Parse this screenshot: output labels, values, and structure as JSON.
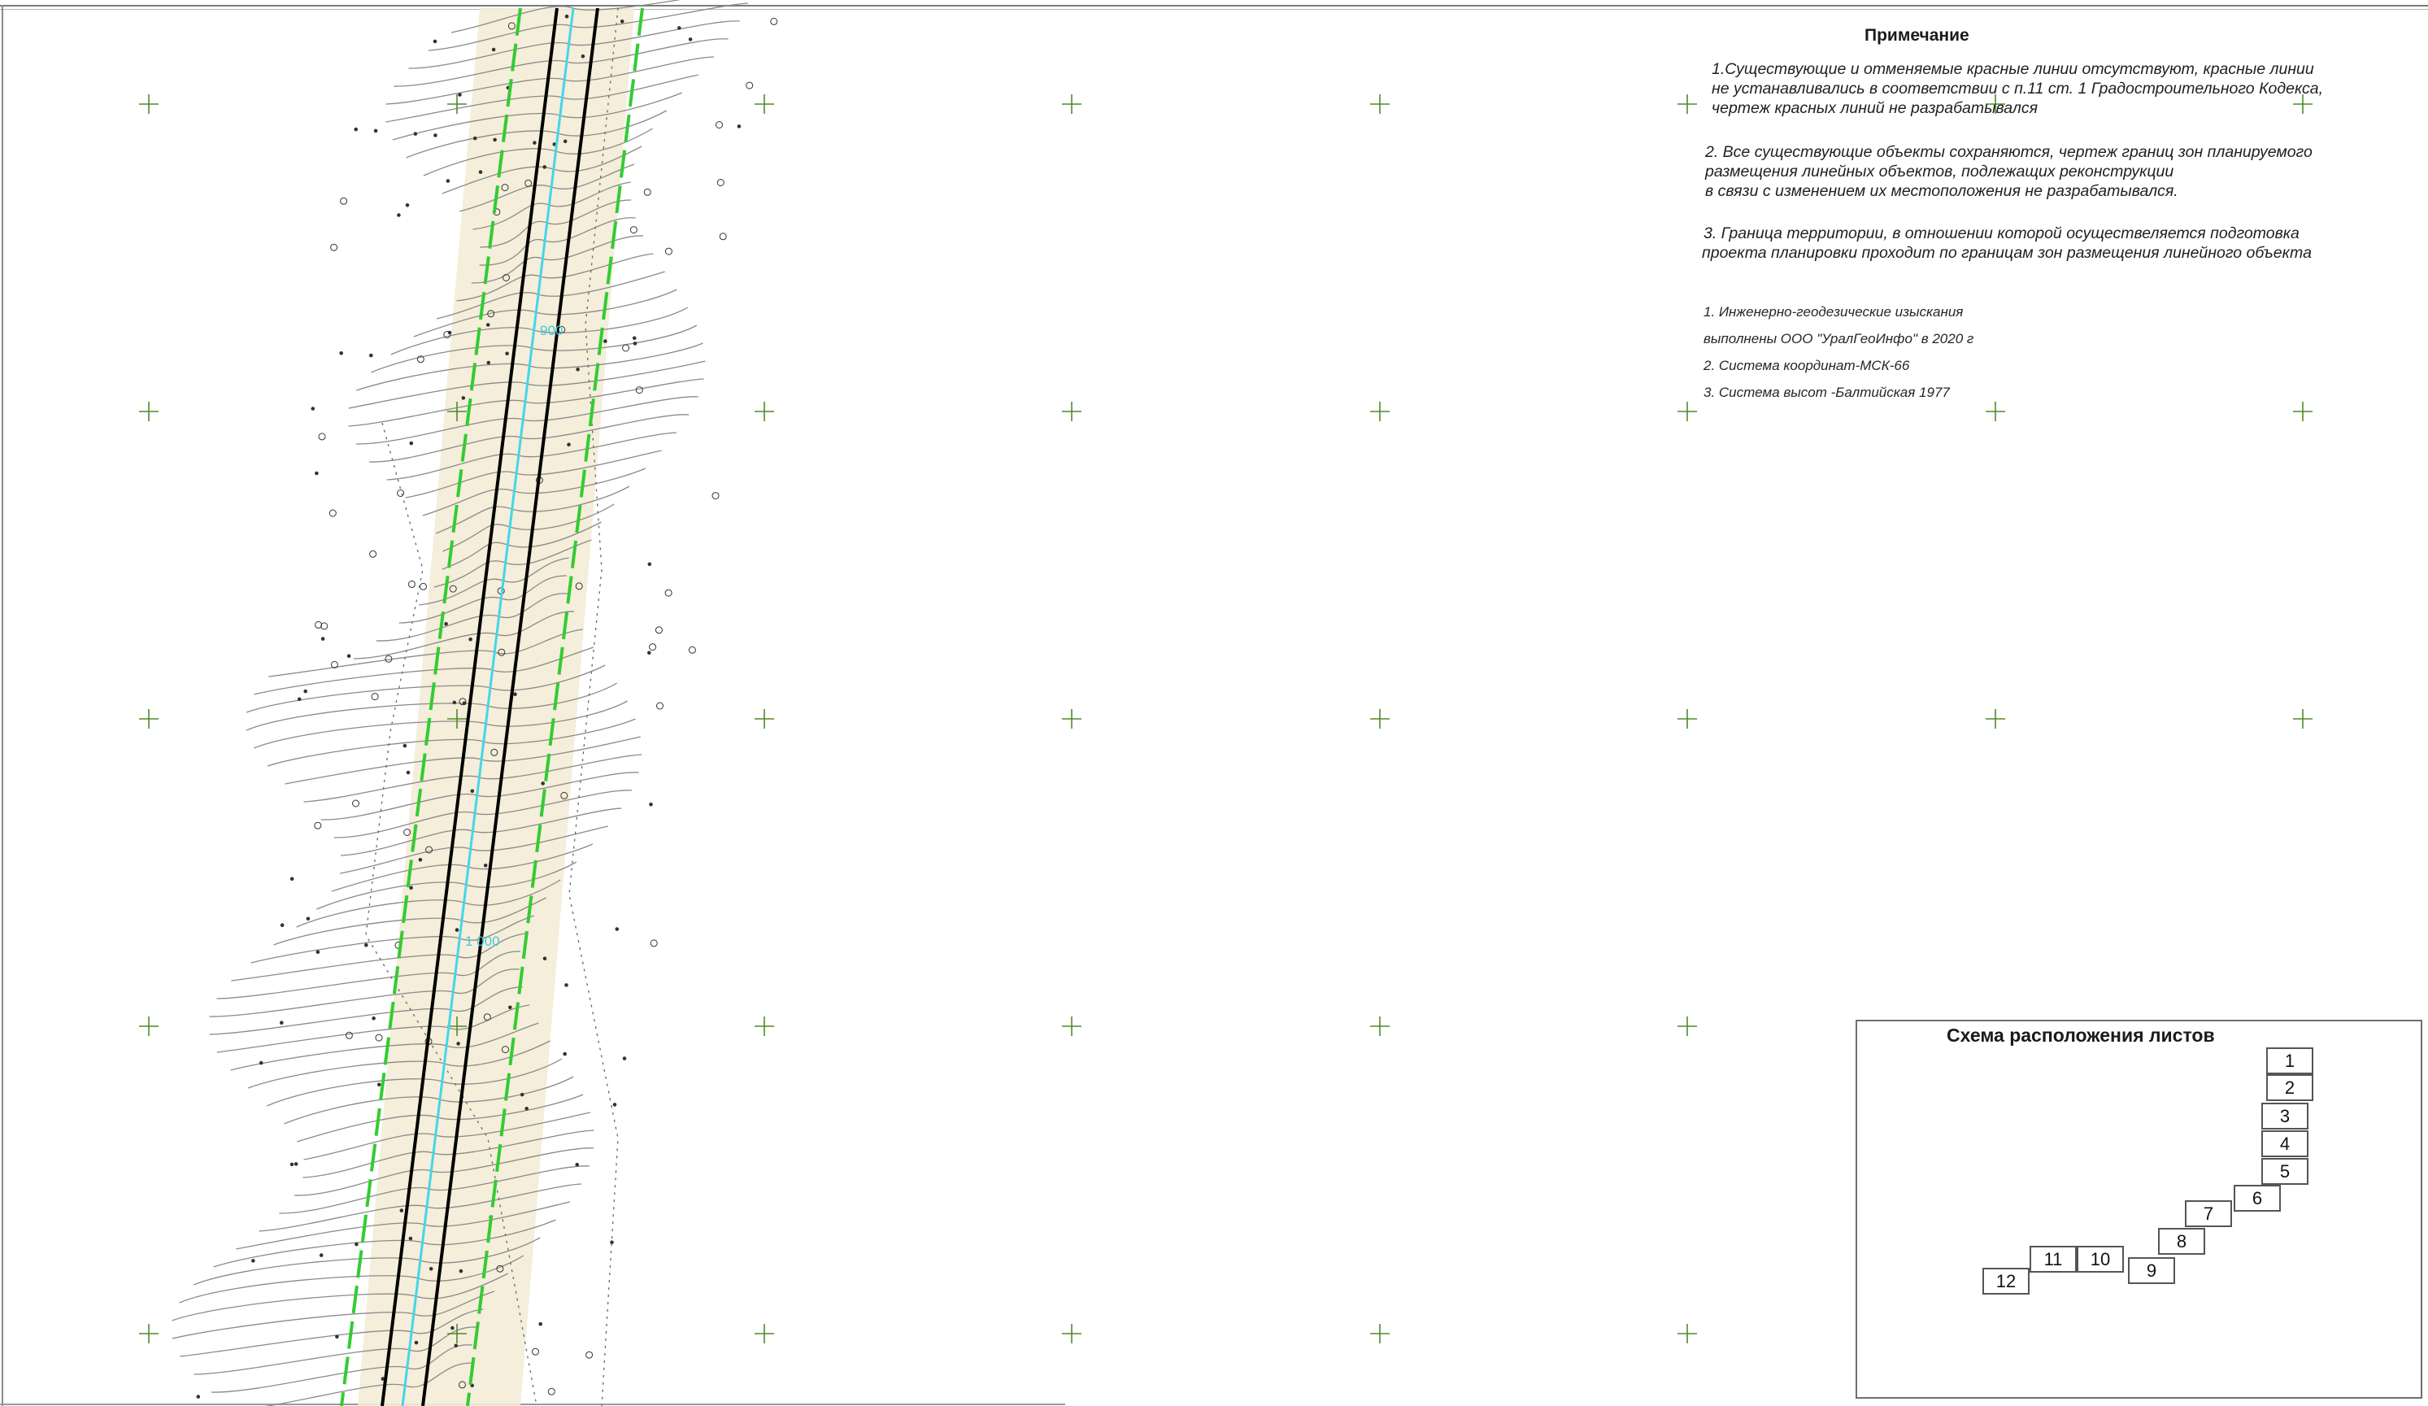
{
  "map": {
    "stations": [
      {
        "label": "900"
      },
      {
        "label": "1 000"
      }
    ]
  },
  "notes": {
    "title": "Примечание",
    "items": [
      [
        "1.Существующие и отменяемые красные линии отсутствуют, красные линии",
        "не устанавливались в соответствии с п.11 ст. 1 Градостроительного Кодекса,",
        "чертеж красных линий не разрабатывался"
      ],
      [
        "2. Все существующие объекты сохраняются, чертеж границ зон планируемого",
        " размещения линейных объектов, подлежащих реконструкции",
        "в связи с изменением их местоположения не разрабатывался."
      ],
      [
        "3. Граница территории, в отношении которой осуществеляется подготовка",
        "проекта планировки проходит по границам зон размещения линейного объекта"
      ]
    ],
    "survey": [
      "1. Инженерно-геодезические изыскания",
      "выполнены ООО \"УралГеоИнфо\" в 2020 г",
      "2. Система координат-МСК-66",
      "3. Система высот -Балтийская 1977"
    ]
  },
  "sheet_layout": {
    "title": "Схема расположения листов",
    "sheets": [
      "1",
      "2",
      "3",
      "4",
      "5",
      "6",
      "7",
      "8",
      "9",
      "10",
      "11",
      "12"
    ]
  },
  "colors": {
    "zone_boundary": "#33cc33",
    "center_line": "#44d6e8",
    "pipeline": "#000000",
    "terrain_fill": "#f3ecd6",
    "contours": "#8a8a8a",
    "grid_cross": "#4f8a2a"
  }
}
